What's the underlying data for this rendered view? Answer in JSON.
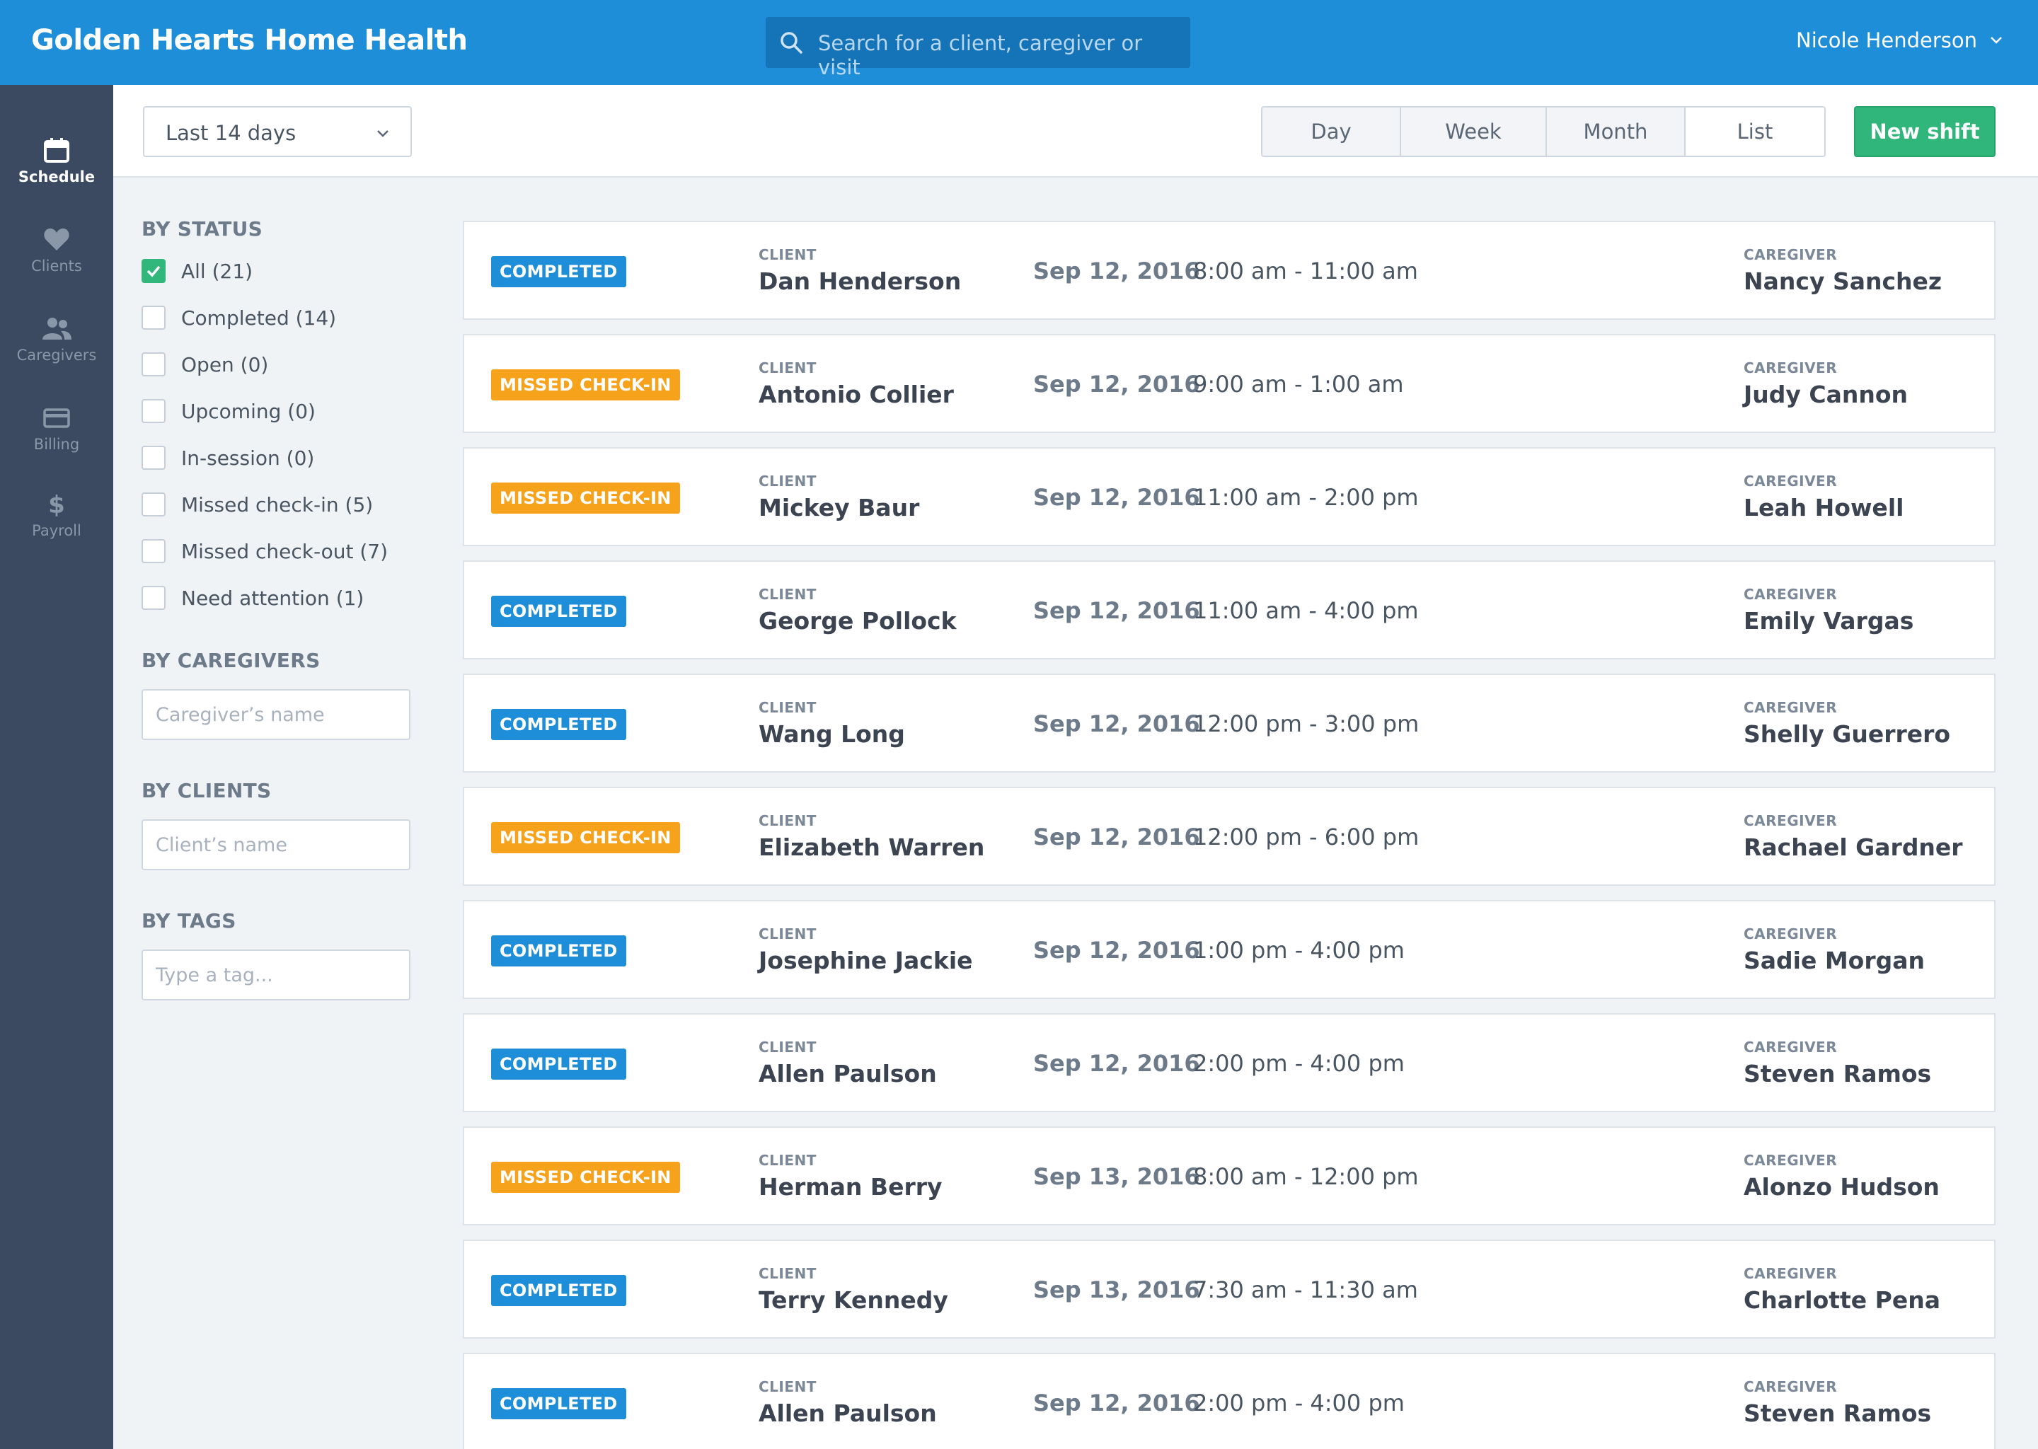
{
  "app": {
    "title": "Golden Hearts Home Health",
    "search_placeholder": "Search for a client, caregiver or visit",
    "user_name": "Nicole Henderson"
  },
  "nav": [
    {
      "label": "Schedule",
      "icon": "calendar-icon",
      "active": true
    },
    {
      "label": "Clients",
      "icon": "heart-icon",
      "active": false
    },
    {
      "label": "Caregivers",
      "icon": "people-icon",
      "active": false
    },
    {
      "label": "Billing",
      "icon": "credit-card-icon",
      "active": false
    },
    {
      "label": "Payroll",
      "icon": "dollar-icon",
      "active": false
    }
  ],
  "toolbar": {
    "range_label": "Last 14 days",
    "views": [
      "Day",
      "Week",
      "Month",
      "List"
    ],
    "new_shift_label": "New shift"
  },
  "filters": {
    "status_heading": "BY STATUS",
    "status_options": [
      {
        "label": "All (21)",
        "checked": true
      },
      {
        "label": "Completed (14)",
        "checked": false
      },
      {
        "label": "Open (0)",
        "checked": false
      },
      {
        "label": "Upcoming (0)",
        "checked": false
      },
      {
        "label": "In-session (0)",
        "checked": false
      },
      {
        "label": "Missed check-in (5)",
        "checked": false
      },
      {
        "label": "Missed check-out (7)",
        "checked": false
      },
      {
        "label": "Need attention (1)",
        "checked": false
      }
    ],
    "caregivers_heading": "BY CAREGIVERS",
    "caregivers_placeholder": "Caregiver’s name",
    "clients_heading": "BY CLIENTS",
    "clients_placeholder": "Client’s name",
    "tags_heading": "BY TAGS",
    "tags_placeholder": "Type a tag..."
  },
  "labels": {
    "client": "CLIENT",
    "caregiver": "CAREGIVER"
  },
  "colors": {
    "completed": "#1e8ed8",
    "missed": "#f7a21b",
    "accent_green": "#30b67a",
    "header_blue": "#1e8ed8"
  },
  "shifts": [
    {
      "status": "COMPLETED",
      "status_type": "completed",
      "client": "Dan Henderson",
      "date": "Sep 12, 2016",
      "time": "8:00 am - 11:00 am",
      "caregiver": "Nancy Sanchez"
    },
    {
      "status": "MISSED CHECK-IN",
      "status_type": "missed",
      "client": "Antonio Collier",
      "date": "Sep 12, 2016",
      "time": "9:00 am - 1:00 am",
      "caregiver": "Judy Cannon"
    },
    {
      "status": "MISSED CHECK-IN",
      "status_type": "missed",
      "client": "Mickey Baur",
      "date": "Sep 12, 2016",
      "time": "11:00 am - 2:00 pm",
      "caregiver": "Leah Howell"
    },
    {
      "status": "COMPLETED",
      "status_type": "completed",
      "client": "George Pollock",
      "date": "Sep 12, 2016",
      "time": "11:00 am - 4:00 pm",
      "caregiver": "Emily Vargas"
    },
    {
      "status": "COMPLETED",
      "status_type": "completed",
      "client": "Wang Long",
      "date": "Sep 12, 2016",
      "time": "12:00 pm - 3:00 pm",
      "caregiver": "Shelly Guerrero"
    },
    {
      "status": "MISSED CHECK-IN",
      "status_type": "missed",
      "client": "Elizabeth Warren",
      "date": "Sep 12, 2016",
      "time": "12:00 pm - 6:00 pm",
      "caregiver": "Rachael Gardner"
    },
    {
      "status": "COMPLETED",
      "status_type": "completed",
      "client": "Josephine Jackie",
      "date": "Sep 12, 2016",
      "time": "1:00 pm - 4:00 pm",
      "caregiver": "Sadie Morgan"
    },
    {
      "status": "COMPLETED",
      "status_type": "completed",
      "client": "Allen Paulson",
      "date": "Sep 12, 2016",
      "time": "2:00 pm - 4:00 pm",
      "caregiver": "Steven Ramos"
    },
    {
      "status": "MISSED CHECK-IN",
      "status_type": "missed",
      "client": "Herman Berry",
      "date": "Sep 13, 2016",
      "time": "8:00 am - 12:00 pm",
      "caregiver": "Alonzo Hudson"
    },
    {
      "status": "COMPLETED",
      "status_type": "completed",
      "client": "Terry Kennedy",
      "date": "Sep 13, 2016",
      "time": "7:30 am - 11:30 am",
      "caregiver": "Charlotte Pena"
    },
    {
      "status": "COMPLETED",
      "status_type": "completed",
      "client": "Allen Paulson",
      "date": "Sep 12, 2016",
      "time": "2:00 pm - 4:00 pm",
      "caregiver": "Steven Ramos"
    }
  ]
}
